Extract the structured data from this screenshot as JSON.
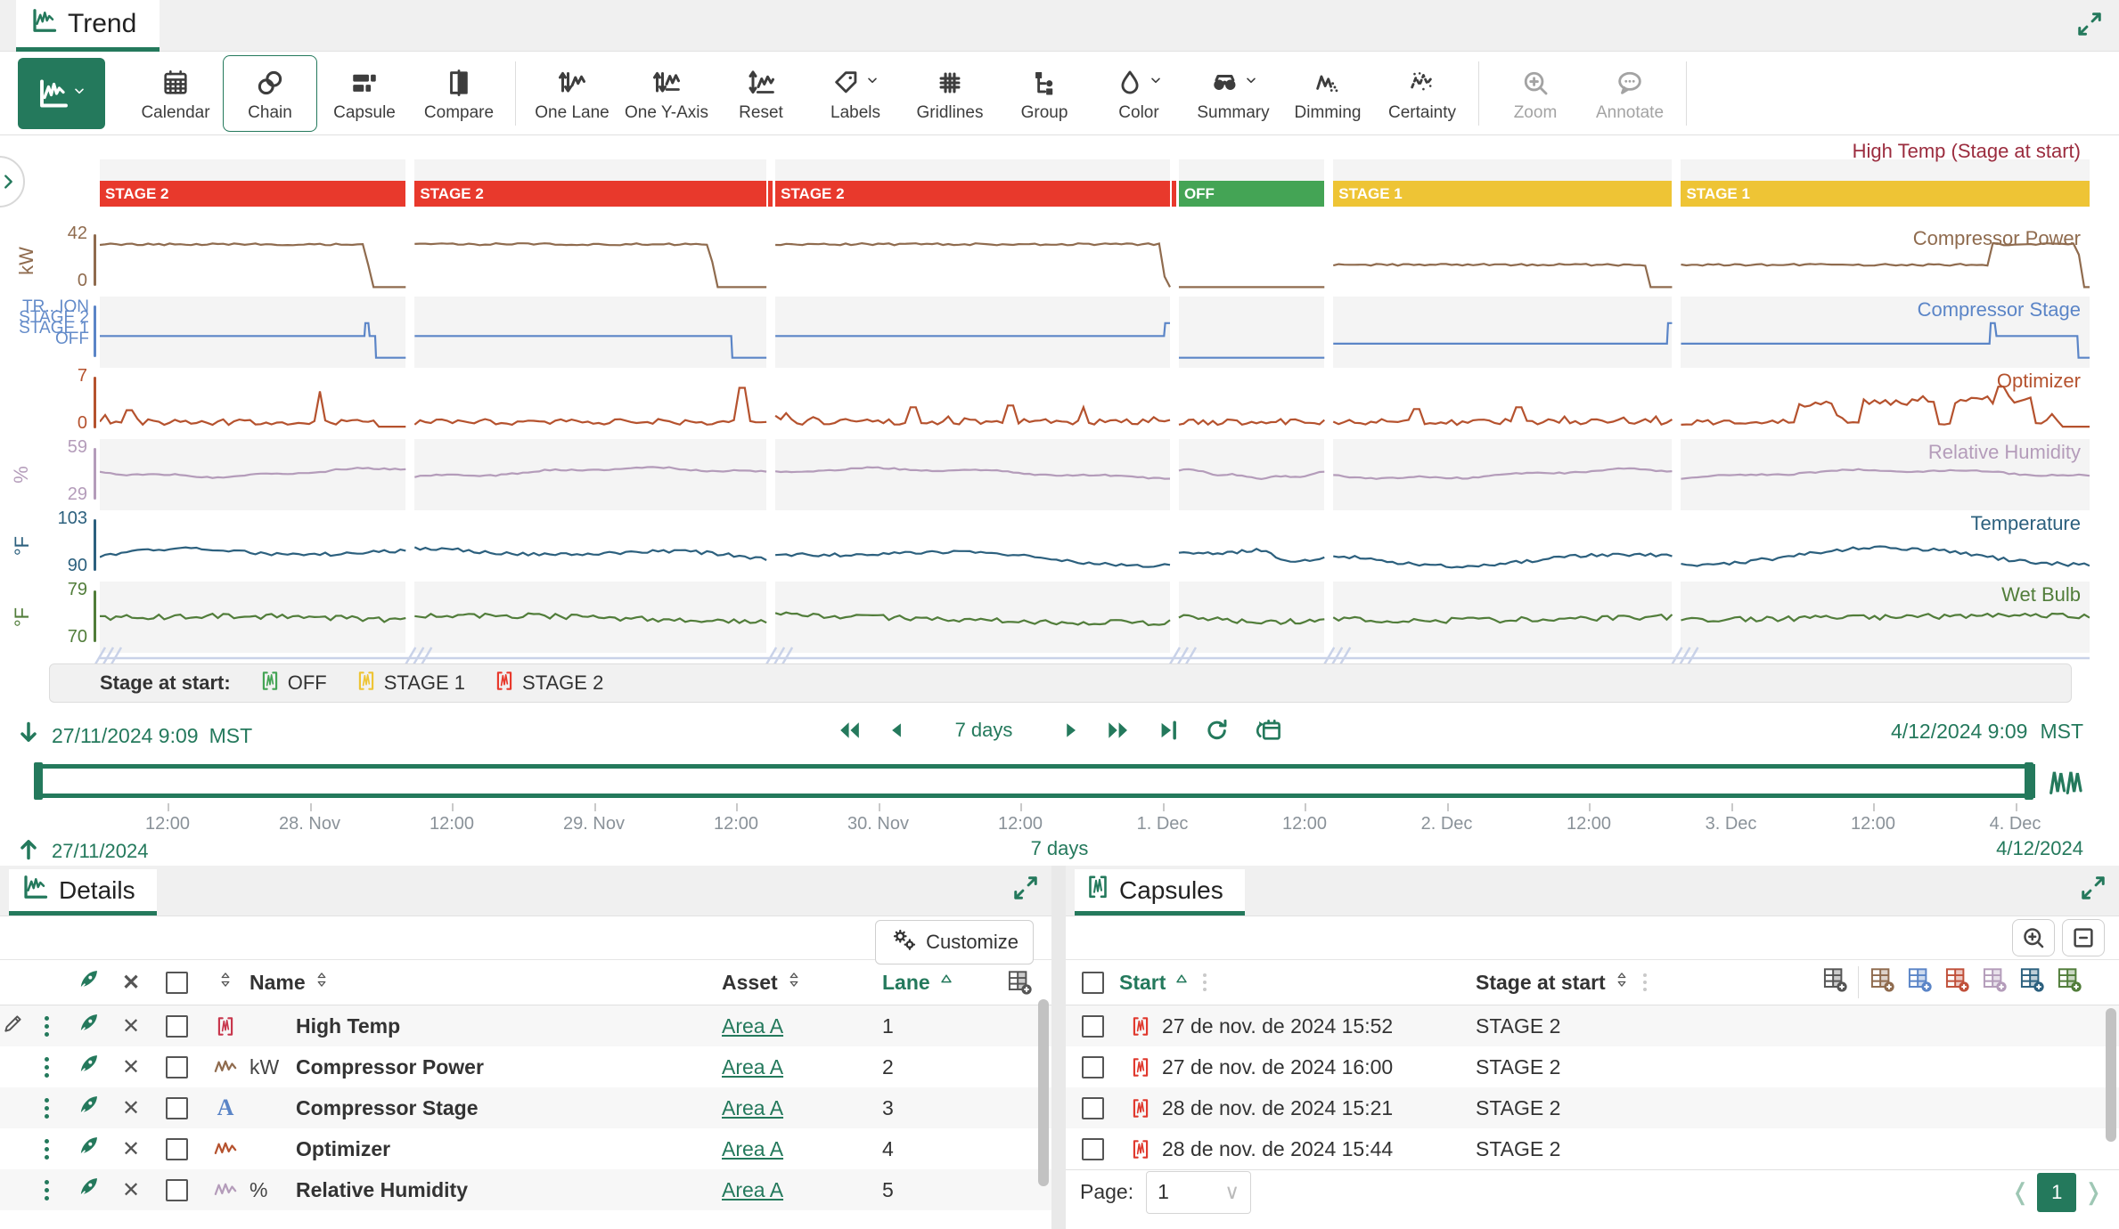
{
  "window": {
    "title": "Trend"
  },
  "colors": {
    "accent": "#24795c",
    "stage_red": "#e8392c",
    "stage_yellow": "#eec435",
    "stage_green": "#44a455",
    "break_line": "#c9d2e8"
  },
  "toolbar": {
    "buttons": [
      {
        "icon": "trend-type",
        "label": "",
        "primary": true,
        "chevron": true,
        "name": "trend-type"
      },
      {
        "icon": "calendar",
        "label": "Calendar",
        "name": "calendar"
      },
      {
        "icon": "chain",
        "label": "Chain",
        "selected": true,
        "name": "chain"
      },
      {
        "icon": "capsule",
        "label": "Capsule",
        "name": "capsule"
      },
      {
        "icon": "compare",
        "label": "Compare",
        "name": "compare"
      },
      {
        "divider": true
      },
      {
        "icon": "one-lane",
        "label": "One Lane",
        "name": "one-lane"
      },
      {
        "icon": "one-y-axis",
        "label": "One Y-Axis",
        "name": "one-y-axis"
      },
      {
        "icon": "reset",
        "label": "Reset",
        "name": "reset"
      },
      {
        "icon": "labels",
        "label": "Labels",
        "chevron": true,
        "name": "labels"
      },
      {
        "icon": "gridlines",
        "label": "Gridlines",
        "name": "gridlines"
      },
      {
        "icon": "group",
        "label": "Group",
        "name": "group"
      },
      {
        "icon": "color",
        "label": "Color",
        "chevron": true,
        "name": "color"
      },
      {
        "icon": "summary",
        "label": "Summary",
        "chevron": true,
        "name": "summary"
      },
      {
        "icon": "dimming",
        "label": "Dimming",
        "name": "dimming"
      },
      {
        "icon": "certainty",
        "label": "Certainty",
        "name": "certainty"
      },
      {
        "divider": true
      },
      {
        "icon": "zoom",
        "label": "Zoom",
        "disabled": true,
        "name": "zoom"
      },
      {
        "icon": "annotate",
        "label": "Annotate",
        "disabled": true,
        "name": "annotate"
      },
      {
        "divider": true
      }
    ]
  },
  "chart": {
    "condition_lane_label": "High Temp (Stage at start)",
    "condition_label_color": "#9b2c3e",
    "stage_colors": {
      "STAGE 2": "#e8392c",
      "STAGE 1": "#eec435",
      "OFF": "#44a455"
    },
    "segments": [
      {
        "stage": "STAGE 2",
        "width": 15.35
      },
      {
        "stage": "STAGE 2",
        "width": 17.65
      },
      {
        "stage": "STAGE 2",
        "width": 19.8,
        "sliver": true
      },
      {
        "stage": "OFF",
        "width": 7.3,
        "sliver": true
      },
      {
        "stage": "STAGE 1",
        "width": 17.0
      },
      {
        "stage": "STAGE 1",
        "width": 20.5
      }
    ],
    "lanes": [
      {
        "label": "Compressor Power",
        "color": "#8f6b4e",
        "unit": "kW",
        "tick_top": "42",
        "tick_bottom": "0",
        "pattern": "power",
        "bg": false
      },
      {
        "label": "Compressor Stage",
        "color": "#5b85c7",
        "unit": "",
        "axis_labels": [
          "TR...ION",
          "STAGE 2",
          "STAGE 1",
          "OFF"
        ],
        "pattern": "stage",
        "bg": true
      },
      {
        "label": "Optimizer",
        "color": "#b5522e",
        "unit": "",
        "tick_top": "7",
        "tick_bottom": "0",
        "pattern": "optimizer",
        "bg": false
      },
      {
        "label": "Relative Humidity",
        "color": "#b49cba",
        "unit": "%",
        "tick_top": "59",
        "tick_bottom": "29",
        "pattern": "humidity",
        "bg": true
      },
      {
        "label": "Temperature",
        "color": "#2c607e",
        "unit": "°F",
        "tick_top": "103",
        "tick_bottom": "90",
        "pattern": "temperature",
        "bg": false
      },
      {
        "label": "Wet Bulb",
        "color": "#517d3a",
        "unit": "°F",
        "tick_top": "79",
        "tick_bottom": "70",
        "pattern": "wetbulb",
        "bg": true
      }
    ]
  },
  "legend": {
    "title": "Stage at start:",
    "items": [
      {
        "label": "OFF",
        "color": "#44a455"
      },
      {
        "label": "STAGE 1",
        "color": "#eec435"
      },
      {
        "label": "STAGE 2",
        "color": "#e8392c"
      }
    ]
  },
  "time_nav": {
    "start": "27/11/2024 9:09",
    "start_tz": "MST",
    "duration": "7 days",
    "end": "4/12/2024 9:09",
    "end_tz": "MST"
  },
  "timeline": {
    "ticks": [
      "12:00",
      "28. Nov",
      "12:00",
      "29. Nov",
      "12:00",
      "30. Nov",
      "12:00",
      "1. Dec",
      "12:00",
      "2. Dec",
      "12:00",
      "3. Dec",
      "12:00",
      "4. Dec"
    ],
    "range_start": "27/11/2024",
    "range_duration": "7 days",
    "range_end": "4/12/2024"
  },
  "details_panel": {
    "title": "Details",
    "customize_label": "Customize",
    "columns": {
      "name": "Name",
      "asset": "Asset",
      "lane": "Lane"
    },
    "rows": [
      {
        "kind": "condition",
        "color": "#c8374d",
        "unit": "",
        "name": "High Temp",
        "asset": "Area A",
        "lane": "1",
        "editing": true
      },
      {
        "kind": "signal",
        "color": "#8f6b4e",
        "unit": "kW",
        "name": "Compressor Power",
        "asset": "Area A",
        "lane": "2"
      },
      {
        "kind": "string",
        "color": "#5b85c7",
        "unit": "",
        "name": "Compressor Stage",
        "asset": "Area A",
        "lane": "3"
      },
      {
        "kind": "signal",
        "color": "#b5522e",
        "unit": "",
        "name": "Optimizer",
        "asset": "Area A",
        "lane": "4"
      },
      {
        "kind": "signal",
        "color": "#b49cba",
        "unit": "%",
        "name": "Relative Humidity",
        "asset": "Area A",
        "lane": "5"
      }
    ]
  },
  "capsules_panel": {
    "title": "Capsules",
    "columns": {
      "start": "Start",
      "stage": "Stage at start"
    },
    "add_column_colors": [
      "#8f6b4e",
      "#5b85c7",
      "#c0503a",
      "#b49cba",
      "#2c607e",
      "#517d3a"
    ],
    "capsule_icon_color": "#e0392e",
    "rows": [
      {
        "start": "27 de nov. de 2024 15:52",
        "stage": "STAGE 2"
      },
      {
        "start": "27 de nov. de 2024 16:00",
        "stage": "STAGE 2"
      },
      {
        "start": "28 de nov. de 2024 15:21",
        "stage": "STAGE 2"
      },
      {
        "start": "28 de nov. de 2024 15:44",
        "stage": "STAGE 2"
      }
    ],
    "pagination": {
      "label": "Page:",
      "value": "1",
      "current": "1"
    }
  }
}
